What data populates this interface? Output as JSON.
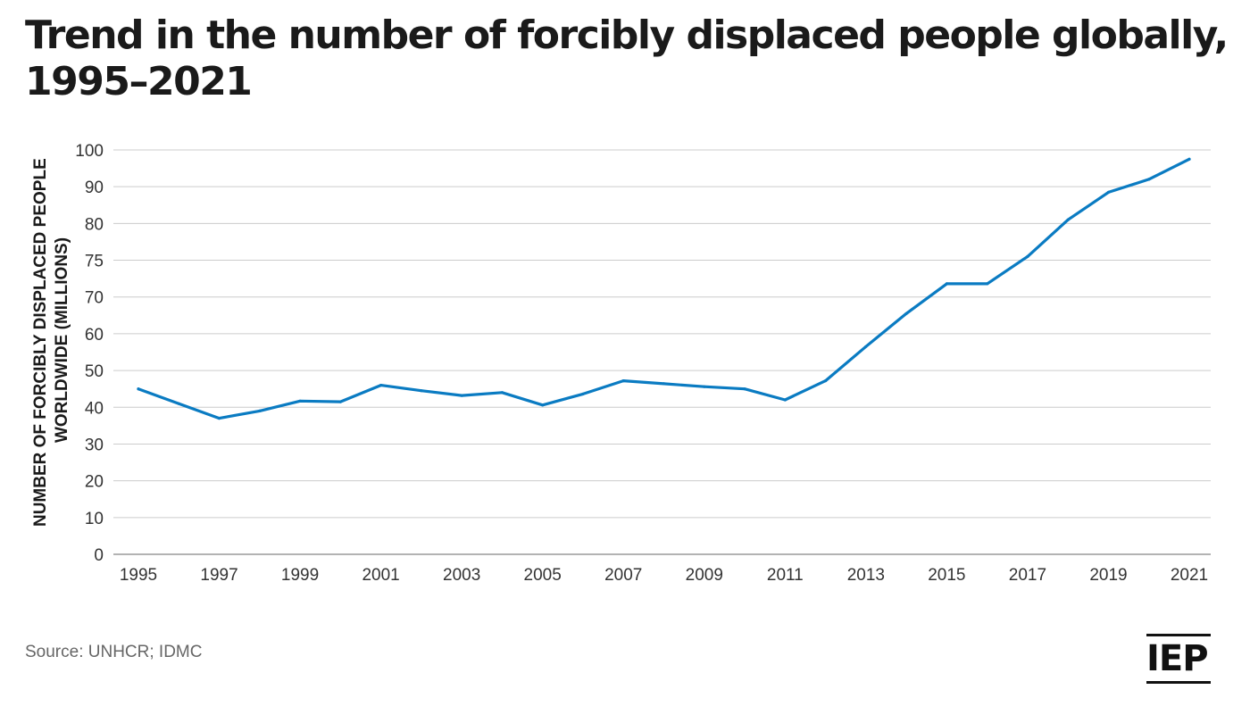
{
  "title_line1": "Trend in the number of forcibly displaced people globally,",
  "title_line2": "1995–2021",
  "source": "Source: UNHCR; IDMC",
  "logo_text": "IEP",
  "colors": {
    "line": "#0a7bc2",
    "grid": "#cccccc",
    "text": "#1a1a1a"
  },
  "chart_data": {
    "type": "line",
    "title": "Trend in the number of forcibly displaced people globally, 1995–2021",
    "ylabel_line1": "NUMBER OF FORCIBLY DISPLACED PEOPLE",
    "ylabel_line2": "WORLDWIDE (MILLIONS)",
    "xlabel": "",
    "x_ticks": [
      "1995",
      "1997",
      "1999",
      "2001",
      "2003",
      "2005",
      "2007",
      "2009",
      "2011",
      "2013",
      "2015",
      "2017",
      "2019",
      "2021"
    ],
    "y_ticks": [
      "0",
      "10",
      "20",
      "30",
      "40",
      "50",
      "60",
      "70",
      "75",
      "80",
      "90",
      "100"
    ],
    "grid": true,
    "x": [
      1995,
      1996,
      1997,
      1998,
      1999,
      2000,
      2001,
      2002,
      2003,
      2004,
      2005,
      2006,
      2007,
      2008,
      2009,
      2010,
      2011,
      2012,
      2013,
      2014,
      2015,
      2016,
      2017,
      2018,
      2019,
      2020,
      2021
    ],
    "series": [
      {
        "values": [
          45,
          41,
          37,
          39,
          41.7,
          41.5,
          46,
          44.5,
          43.2,
          44,
          40.6,
          43.6,
          47.2,
          46.4,
          45.6,
          45,
          42,
          47.2,
          56.5,
          65.5,
          71.8,
          71.8,
          75.5,
          81,
          88.5,
          92,
          97.5
        ]
      }
    ]
  }
}
